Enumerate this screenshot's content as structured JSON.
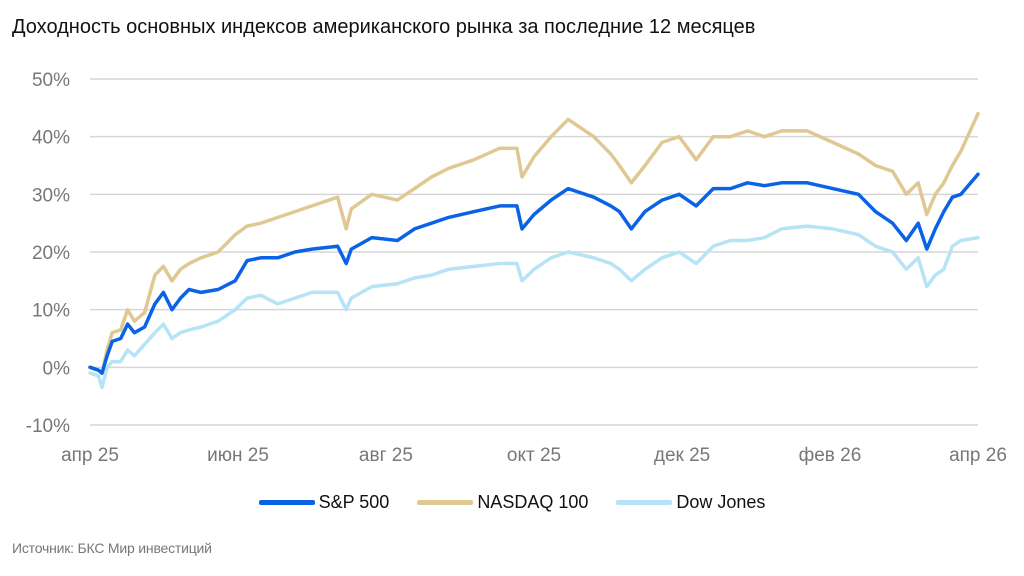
{
  "chart_data": {
    "type": "line",
    "title": "Доходность основных индексов американского рынка за последние 12 месяцев",
    "xlabel": "",
    "ylabel": "",
    "ylim": [
      -10,
      50
    ],
    "xlim": [
      0,
      52
    ],
    "y_ticks": [
      {
        "value": 50,
        "label": "50%"
      },
      {
        "value": 40,
        "label": "40%"
      },
      {
        "value": 30,
        "label": "30%"
      },
      {
        "value": 20,
        "label": "20%"
      },
      {
        "value": 10,
        "label": "10%"
      },
      {
        "value": 0,
        "label": "0%"
      },
      {
        "value": -10,
        "label": "-10%"
      }
    ],
    "x_ticks": [
      {
        "value": 0,
        "label": "апр 25"
      },
      {
        "value": 8.67,
        "label": "июн 25"
      },
      {
        "value": 17.33,
        "label": "авг 25"
      },
      {
        "value": 26,
        "label": "окт 25"
      },
      {
        "value": 34.67,
        "label": "дек 25"
      },
      {
        "value": 43.33,
        "label": "фев 26"
      },
      {
        "value": 52,
        "label": "апр 26"
      }
    ],
    "x_unit": "weeks since start",
    "grid": true,
    "legend_position": "bottom",
    "series": [
      {
        "name": "S&P 500",
        "color": "#0a63e6",
        "x": [
          0,
          0.5,
          0.7,
          1,
          1.3,
          1.8,
          2.2,
          2.6,
          3.2,
          3.8,
          4.3,
          4.8,
          5.3,
          5.8,
          6.5,
          7.5,
          8.5,
          9.2,
          10,
          11,
          12,
          13,
          14.5,
          15,
          15.3,
          16.5,
          18,
          19,
          20,
          21,
          22.5,
          24,
          25,
          25.3,
          26,
          27,
          28,
          29.5,
          30.5,
          31,
          31.7,
          32.5,
          33.5,
          34.5,
          35.5,
          36.5,
          37.5,
          38.5,
          39.5,
          40.5,
          42,
          43.5,
          45,
          46,
          47,
          47.8,
          48.5,
          49,
          49.5,
          50,
          50.5,
          51,
          52
        ],
        "values": [
          0,
          -0.5,
          -1,
          2,
          4.5,
          5,
          7.5,
          6,
          7,
          11,
          13,
          10,
          12,
          13.5,
          13,
          13.5,
          15,
          18.5,
          19,
          19,
          20,
          20.5,
          21,
          18,
          20.5,
          22.5,
          22,
          24,
          25,
          26,
          27,
          28,
          28,
          24,
          26.5,
          29,
          31,
          29.5,
          28,
          27,
          24,
          27,
          29,
          30,
          28,
          31,
          31,
          32,
          31.5,
          32,
          32,
          31,
          30,
          27,
          25,
          22,
          25,
          20.5,
          24,
          27,
          29.5,
          30,
          33.5
        ]
      },
      {
        "name": "NASDAQ 100",
        "color": "#e0c893",
        "x": [
          0,
          0.5,
          0.7,
          1,
          1.3,
          1.8,
          2.2,
          2.6,
          3.2,
          3.8,
          4.3,
          4.8,
          5.3,
          5.8,
          6.5,
          7.5,
          8.5,
          9.2,
          10,
          11,
          12,
          13,
          14.5,
          15,
          15.3,
          16.5,
          18,
          19,
          20,
          21,
          22.5,
          24,
          25,
          25.3,
          26,
          27,
          28,
          29.5,
          30.5,
          31,
          31.7,
          32.5,
          33.5,
          34.5,
          35.5,
          36.5,
          37.5,
          38.5,
          39.5,
          40.5,
          42,
          43.5,
          45,
          46,
          47,
          47.8,
          48.5,
          49,
          49.5,
          50,
          50.5,
          51,
          52
        ],
        "values": [
          0,
          -0.5,
          -1,
          3,
          6,
          6.5,
          10,
          8,
          9.5,
          16,
          17.5,
          15,
          17,
          18,
          19,
          20,
          23,
          24.5,
          25,
          26,
          27,
          28,
          29.5,
          24,
          27.5,
          30,
          29,
          31,
          33,
          34.5,
          36,
          38,
          38,
          33,
          36.5,
          40,
          43,
          40,
          37,
          35,
          32,
          35,
          39,
          40,
          36,
          40,
          40,
          41,
          40,
          41,
          41,
          39,
          37,
          35,
          34,
          30,
          32,
          26.5,
          30,
          32,
          35,
          37.5,
          44
        ]
      },
      {
        "name": "Dow Jones",
        "color": "#b6e3f5",
        "x": [
          0,
          0.5,
          0.7,
          1,
          1.3,
          1.8,
          2.2,
          2.6,
          3.2,
          3.8,
          4.3,
          4.8,
          5.3,
          5.8,
          6.5,
          7.5,
          8.5,
          9.2,
          10,
          11,
          12,
          13,
          14.5,
          15,
          15.3,
          16.5,
          18,
          19,
          20,
          21,
          22.5,
          24,
          25,
          25.3,
          26,
          27,
          28,
          29.5,
          30.5,
          31,
          31.7,
          32.5,
          33.5,
          34.5,
          35.5,
          36.5,
          37.5,
          38.5,
          39.5,
          40.5,
          42,
          43.5,
          45,
          46,
          47,
          47.8,
          48.5,
          49,
          49.5,
          50,
          50.5,
          51,
          52
        ],
        "values": [
          -1,
          -1.5,
          -3.5,
          0,
          1,
          1,
          3,
          2,
          4,
          6,
          7.5,
          5,
          6,
          6.5,
          7,
          8,
          10,
          12,
          12.5,
          11,
          12,
          13,
          13,
          10,
          12,
          14,
          14.5,
          15.5,
          16,
          17,
          17.5,
          18,
          18,
          15,
          17,
          19,
          20,
          19,
          18,
          17,
          15,
          17,
          19,
          20,
          18,
          21,
          22,
          22,
          22.5,
          24,
          24.5,
          24,
          23,
          21,
          20,
          17,
          19,
          14,
          16,
          17,
          21,
          22,
          22.5
        ]
      }
    ]
  },
  "header": {
    "title": "Доходность основных индексов американского рынка за последние 12 месяцев"
  },
  "footer": {
    "source": "Источник: БКС Мир инвестиций"
  }
}
